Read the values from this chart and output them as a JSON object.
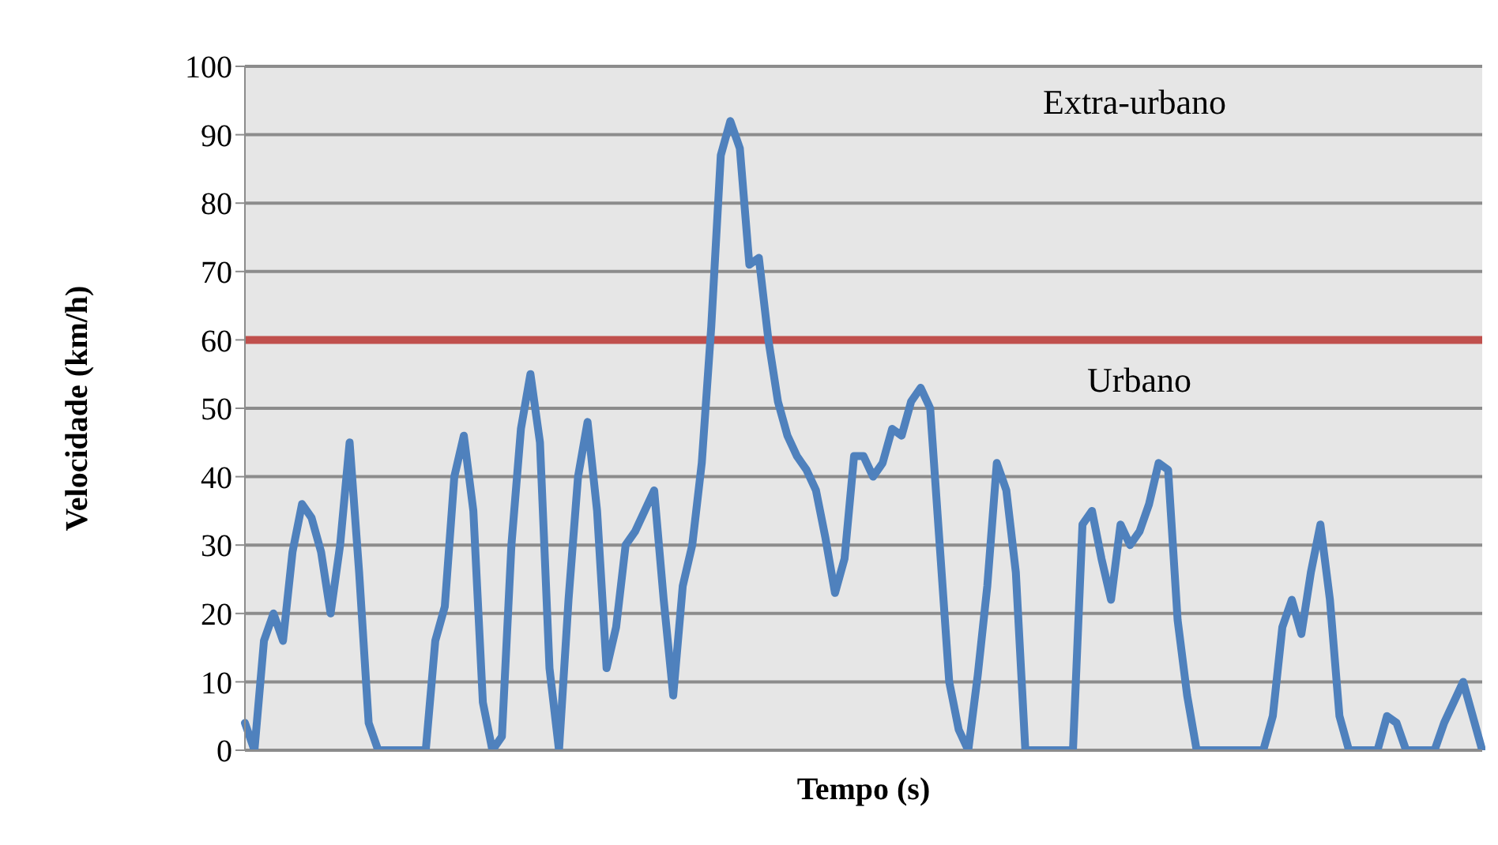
{
  "chart_data": {
    "type": "line",
    "xlabel": "Tempo (s)",
    "ylabel": "Velocidade (km/h)",
    "categories": [
      null,
      null,
      null,
      null,
      null,
      null,
      null,
      null,
      null,
      null,
      null,
      null,
      null,
      null,
      null,
      null,
      null,
      null,
      null,
      null,
      null,
      null,
      null,
      null,
      null,
      null,
      null,
      null,
      null,
      null,
      null,
      null,
      null,
      null,
      null,
      null,
      null,
      null,
      null,
      null,
      null,
      null,
      null,
      null,
      null,
      null,
      null,
      null,
      null,
      null,
      null,
      null,
      null,
      null,
      null,
      null,
      null,
      null,
      null,
      null,
      null,
      null,
      null,
      null,
      null,
      null,
      null,
      null,
      null,
      null,
      null,
      null,
      null,
      null,
      null,
      null,
      null,
      null,
      null,
      null,
      null,
      null,
      null,
      null,
      null,
      null,
      null,
      null,
      null,
      null,
      null,
      null,
      null,
      null,
      null,
      null,
      null,
      null,
      null,
      null,
      null,
      null,
      null,
      null,
      null,
      null,
      null,
      null,
      null,
      null,
      null,
      null,
      null,
      null,
      null,
      null,
      null,
      null,
      null,
      null,
      null,
      null,
      null,
      null,
      null,
      null,
      null,
      null,
      null,
      null,
      null
    ],
    "series": [
      {
        "color": "#4f81bd",
        "values": [
          4,
          0,
          16,
          20,
          16,
          29,
          36,
          34,
          29,
          20,
          30,
          45,
          26,
          4,
          0,
          0,
          0,
          0,
          0,
          0,
          16,
          21,
          40,
          46,
          35,
          7,
          0,
          2,
          30,
          47,
          55,
          45,
          12,
          0,
          22,
          40,
          48,
          35,
          12,
          18,
          30,
          32,
          35,
          38,
          22,
          8,
          24,
          30,
          42,
          62,
          87,
          92,
          88,
          71,
          72,
          60,
          51,
          46,
          43,
          41,
          38,
          31,
          23,
          28,
          43,
          43,
          40,
          42,
          47,
          46,
          51,
          53,
          50,
          30,
          10,
          3,
          0,
          11,
          24,
          42,
          38,
          26,
          0,
          0,
          0,
          0,
          0,
          0,
          33,
          35,
          28,
          22,
          33,
          30,
          32,
          36,
          42,
          41,
          19,
          8,
          0,
          0,
          0,
          0,
          0,
          0,
          0,
          0,
          5,
          18,
          22,
          17,
          26,
          33,
          22,
          5,
          0,
          0,
          0,
          0,
          5,
          4,
          0,
          0,
          0,
          0,
          4,
          7,
          10,
          5,
          0
        ]
      }
    ],
    "ylim": [
      0,
      100
    ],
    "yticks": [
      0,
      10,
      20,
      30,
      40,
      50,
      60,
      70,
      80,
      90,
      100
    ],
    "ref_lines": [
      {
        "axis": "y",
        "value": 60,
        "color": "#c0504d"
      }
    ],
    "annotations": [
      "Extra-urbano",
      "Urbano"
    ],
    "grid": "y",
    "marker": "none",
    "line_style": "solid",
    "tick_labels": "y"
  }
}
